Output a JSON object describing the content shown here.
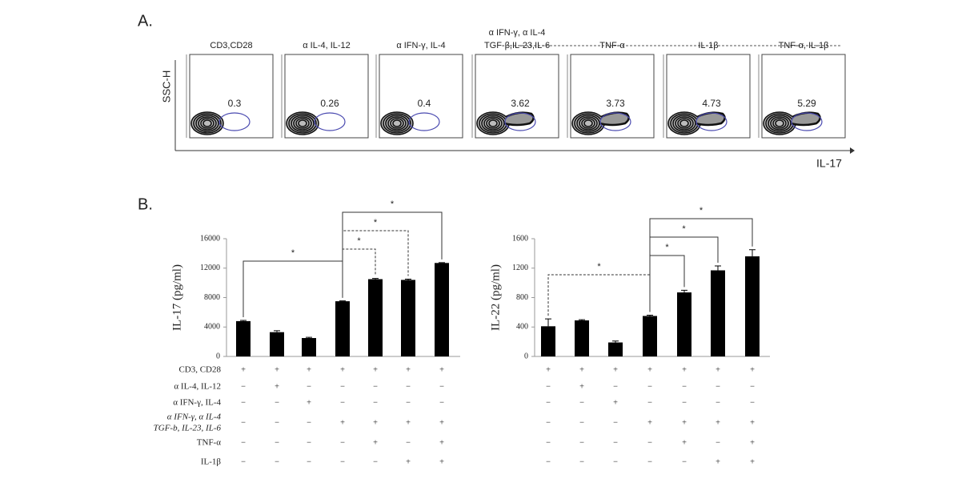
{
  "panel_a": {
    "label": "A.",
    "y_axis": "SSC-H",
    "x_axis": "IL-17",
    "plots": [
      {
        "title": [
          "CD3,CD28"
        ],
        "percent": 0.3
      },
      {
        "title": [
          "α IL-4, IL-12"
        ],
        "percent": 0.26
      },
      {
        "title": [
          "α IFN-γ, IL-4"
        ],
        "percent": 0.4
      },
      {
        "title": [
          "α IFN-γ, α IL-4",
          "TGF-β,IL-23,IL-6"
        ],
        "percent": 3.62
      },
      {
        "title": [
          "TNF-α"
        ],
        "percent": 3.73
      },
      {
        "title": [
          "IL-1β"
        ],
        "percent": 4.73
      },
      {
        "title": [
          "TNF-α, IL-1β"
        ],
        "percent": 5.29
      }
    ]
  },
  "panel_b": {
    "label": "B."
  },
  "chart_data": [
    {
      "type": "bar",
      "y_label": "IL-17 (pg/ml)",
      "color": "#000000",
      "ylim": [
        0,
        16000
      ],
      "yticks": [
        0,
        4000,
        8000,
        12000,
        16000
      ],
      "values": [
        4800,
        3300,
        2500,
        7500,
        10500,
        10400,
        12700
      ],
      "errors": [
        100,
        200,
        100,
        50,
        100,
        100,
        50
      ],
      "brackets": [
        {
          "label": "*",
          "pair": [
            0,
            3
          ],
          "dashed": false
        },
        {
          "label": "*",
          "pair": [
            3,
            4
          ],
          "dashed": true
        },
        {
          "label": "*",
          "pair": [
            3,
            5
          ],
          "dashed": true
        },
        {
          "label": "*",
          "pair": [
            3,
            6
          ],
          "dashed": false
        }
      ]
    },
    {
      "type": "bar",
      "y_label": "IL-22 (pg/ml)",
      "color": "#000000",
      "ylim": [
        0,
        1600
      ],
      "yticks": [
        0,
        400,
        800,
        1200,
        1600
      ],
      "values": [
        410,
        490,
        190,
        550,
        870,
        1170,
        1360
      ],
      "errors": [
        100,
        10,
        20,
        10,
        30,
        60,
        90
      ],
      "brackets": [
        {
          "label": "*",
          "pair": [
            0,
            3
          ],
          "dashed": true
        },
        {
          "label": "*",
          "pair": [
            3,
            4
          ],
          "dashed": false
        },
        {
          "label": "*",
          "pair": [
            3,
            5
          ],
          "dashed": false
        },
        {
          "label": "*",
          "pair": [
            3,
            6
          ],
          "dashed": false
        }
      ]
    }
  ],
  "treatments": [
    {
      "label": [
        "CD3, CD28"
      ],
      "marks": [
        "+",
        "+",
        "+",
        "+",
        "+",
        "+",
        "+"
      ]
    },
    {
      "label": [
        "α IL-4, IL-12"
      ],
      "marks": [
        "−",
        "+",
        "−",
        "−",
        "−",
        "−",
        "−"
      ]
    },
    {
      "label": [
        "α IFN-γ, IL-4"
      ],
      "marks": [
        "−",
        "−",
        "+",
        "−",
        "−",
        "−",
        "−"
      ]
    },
    {
      "label": [
        "α IFN-γ, α IL-4",
        "TGF-b, IL-23, IL-6"
      ],
      "marks": [
        "−",
        "−",
        "−",
        "+",
        "+",
        "+",
        "+"
      ]
    },
    {
      "label": [
        "TNF-α"
      ],
      "marks": [
        "−",
        "−",
        "−",
        "−",
        "+",
        "−",
        "+"
      ]
    },
    {
      "label": [
        "IL-1β"
      ],
      "marks": [
        "−",
        "−",
        "−",
        "−",
        "−",
        "+",
        "+"
      ]
    }
  ]
}
